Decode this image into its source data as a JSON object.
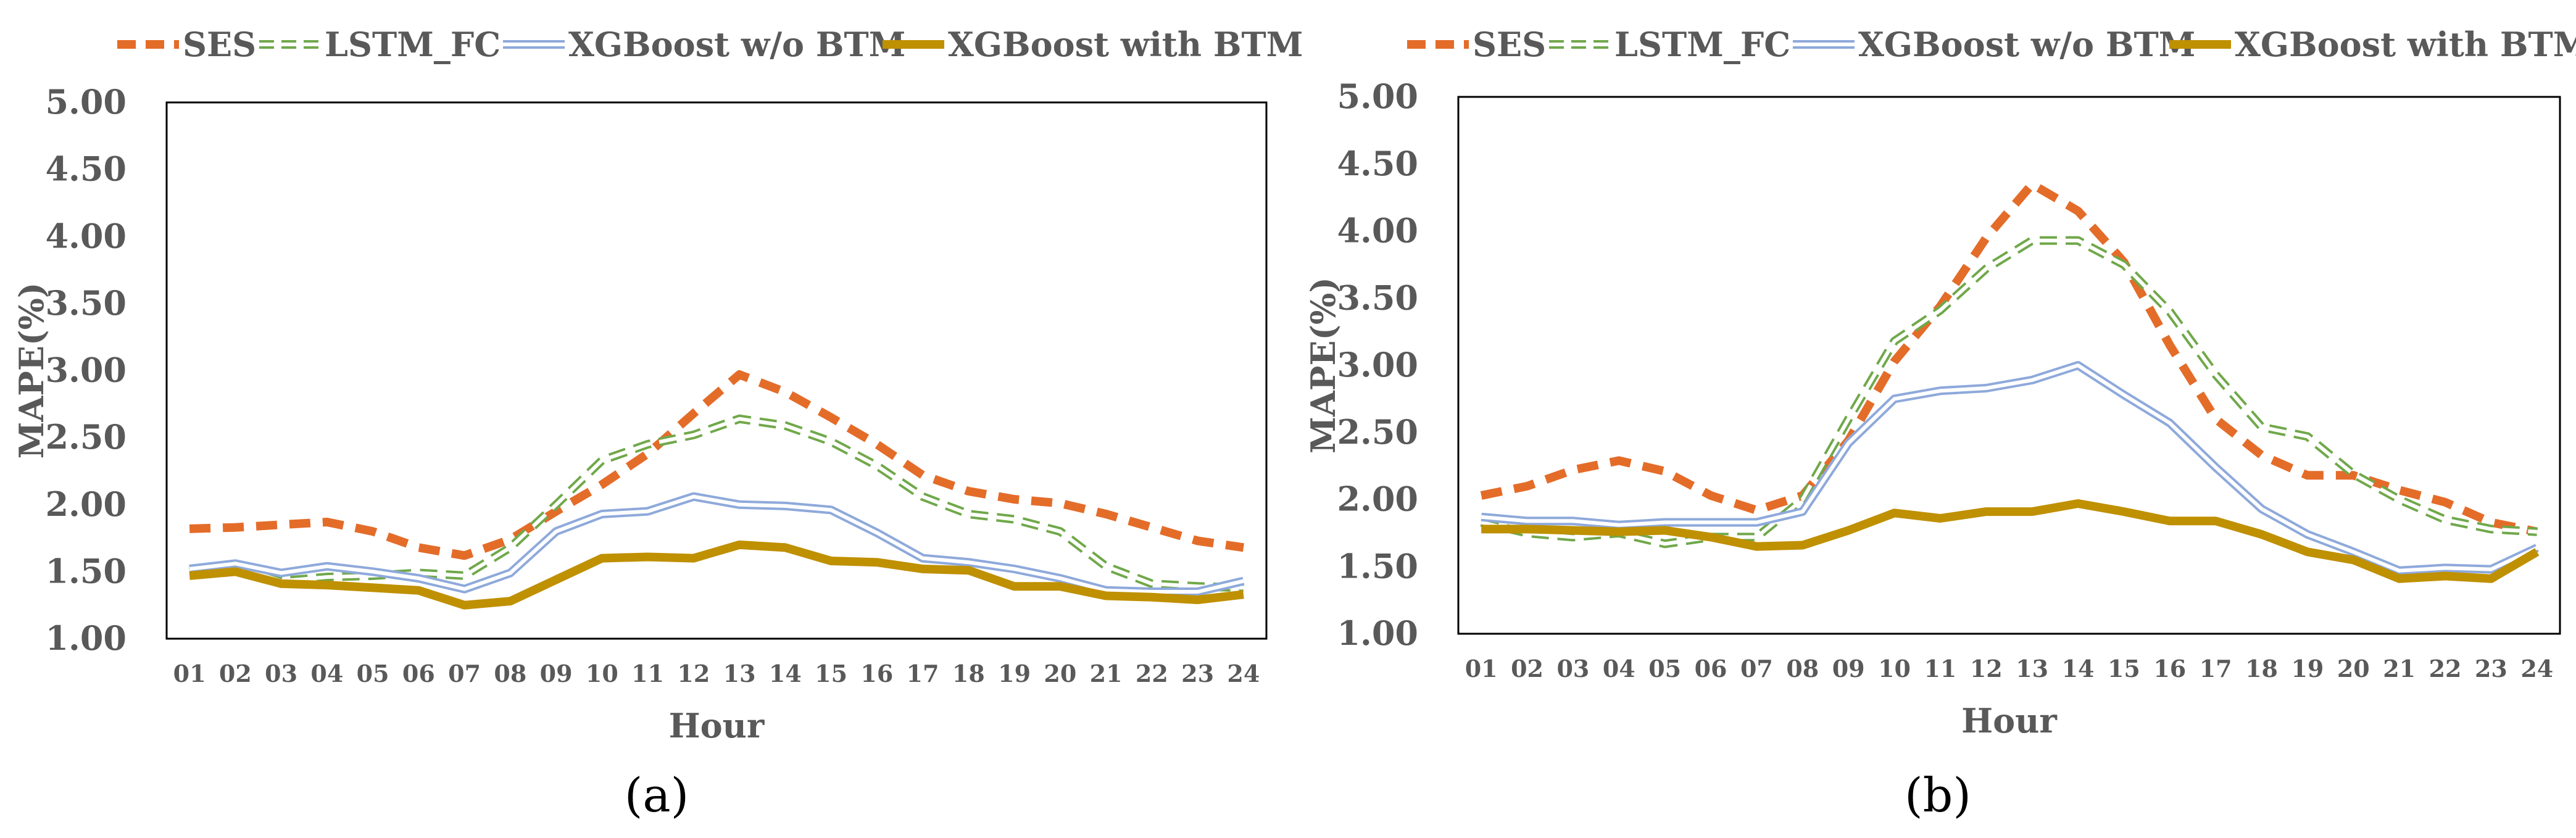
{
  "colors": {
    "ses": "#E46C29",
    "lstm": "#70A84A",
    "xgb_wo": "#8EA9DB",
    "xgb_with": "#BF9000",
    "text": "#595959",
    "frame": "#000000"
  },
  "chart_data": [
    {
      "type": "line",
      "panel_label": "(a)",
      "xlabel": "Hour",
      "ylabel": "MAPE(%)",
      "ylim": [
        1.0,
        5.0
      ],
      "yticks": [
        "1.00",
        "1.50",
        "2.00",
        "2.50",
        "3.00",
        "3.50",
        "4.00",
        "4.50",
        "5.00"
      ],
      "categories": [
        "01",
        "02",
        "03",
        "04",
        "05",
        "06",
        "07",
        "08",
        "09",
        "10",
        "11",
        "12",
        "13",
        "14",
        "15",
        "16",
        "17",
        "18",
        "19",
        "20",
        "21",
        "22",
        "23",
        "24"
      ],
      "legend_position": "top",
      "series": [
        {
          "name": "SES",
          "key": "ses",
          "values": [
            1.82,
            1.83,
            1.85,
            1.87,
            1.8,
            1.68,
            1.62,
            1.74,
            1.95,
            2.15,
            2.38,
            2.68,
            2.97,
            2.84,
            2.65,
            2.45,
            2.22,
            2.1,
            2.04,
            2.01,
            1.93,
            1.83,
            1.73,
            1.68
          ]
        },
        {
          "name": "LSTM_FC",
          "key": "lstm",
          "values": [
            1.5,
            1.54,
            1.43,
            1.46,
            1.47,
            1.49,
            1.47,
            1.68,
            2.0,
            2.33,
            2.45,
            2.52,
            2.64,
            2.59,
            2.47,
            2.29,
            2.06,
            1.93,
            1.89,
            1.8,
            1.54,
            1.41,
            1.39,
            1.38
          ]
        },
        {
          "name": "XGBoost w/o BTM",
          "key": "xgb_wo",
          "values": [
            1.52,
            1.56,
            1.49,
            1.54,
            1.5,
            1.45,
            1.37,
            1.49,
            1.8,
            1.93,
            1.95,
            2.06,
            2.0,
            1.99,
            1.96,
            1.79,
            1.6,
            1.57,
            1.52,
            1.45,
            1.36,
            1.35,
            1.35,
            1.43
          ]
        },
        {
          "name": "XGBoost with BTM",
          "key": "xgb_with",
          "values": [
            1.47,
            1.5,
            1.41,
            1.4,
            1.38,
            1.36,
            1.25,
            1.28,
            1.44,
            1.6,
            1.61,
            1.6,
            1.7,
            1.68,
            1.58,
            1.57,
            1.52,
            1.51,
            1.39,
            1.39,
            1.32,
            1.31,
            1.29,
            1.33
          ]
        }
      ]
    },
    {
      "type": "line",
      "panel_label": "(b)",
      "xlabel": "Hour",
      "ylabel": "MAPE(%)",
      "ylim": [
        1.0,
        5.0
      ],
      "yticks": [
        "1.00",
        "1.50",
        "2.00",
        "2.50",
        "3.00",
        "3.50",
        "4.00",
        "4.50",
        "5.00"
      ],
      "categories": [
        "01",
        "02",
        "03",
        "04",
        "05",
        "06",
        "07",
        "08",
        "09",
        "10",
        "11",
        "12",
        "13",
        "14",
        "15",
        "16",
        "17",
        "18",
        "19",
        "20",
        "21",
        "22",
        "23",
        "24"
      ],
      "legend_position": "top",
      "series": [
        {
          "name": "SES",
          "key": "ses",
          "values": [
            2.03,
            2.1,
            2.22,
            2.29,
            2.21,
            2.03,
            1.92,
            2.03,
            2.44,
            3.03,
            3.44,
            3.95,
            4.35,
            4.15,
            3.77,
            3.15,
            2.6,
            2.33,
            2.18,
            2.18,
            2.07,
            1.98,
            1.83,
            1.76
          ]
        },
        {
          "name": "LSTM_FC",
          "key": "lstm",
          "values": [
            1.83,
            1.75,
            1.72,
            1.75,
            1.67,
            1.72,
            1.72,
            2.0,
            2.6,
            3.18,
            3.41,
            3.72,
            3.93,
            3.93,
            3.75,
            3.4,
            2.93,
            2.54,
            2.47,
            2.19,
            2.0,
            1.85,
            1.78,
            1.76
          ]
        },
        {
          "name": "XGBoost w/o BTM",
          "key": "xgb_wo",
          "values": [
            1.87,
            1.84,
            1.84,
            1.81,
            1.83,
            1.83,
            1.83,
            1.91,
            2.42,
            2.75,
            2.81,
            2.83,
            2.89,
            3.0,
            2.78,
            2.57,
            2.24,
            1.93,
            1.74,
            1.61,
            1.47,
            1.49,
            1.48,
            1.64
          ]
        },
        {
          "name": "XGBoost with BTM",
          "key": "xgb_with",
          "values": [
            1.78,
            1.78,
            1.77,
            1.76,
            1.77,
            1.72,
            1.65,
            1.66,
            1.77,
            1.9,
            1.86,
            1.91,
            1.91,
            1.97,
            1.91,
            1.84,
            1.84,
            1.74,
            1.61,
            1.55,
            1.41,
            1.43,
            1.41,
            1.61
          ]
        }
      ]
    }
  ]
}
